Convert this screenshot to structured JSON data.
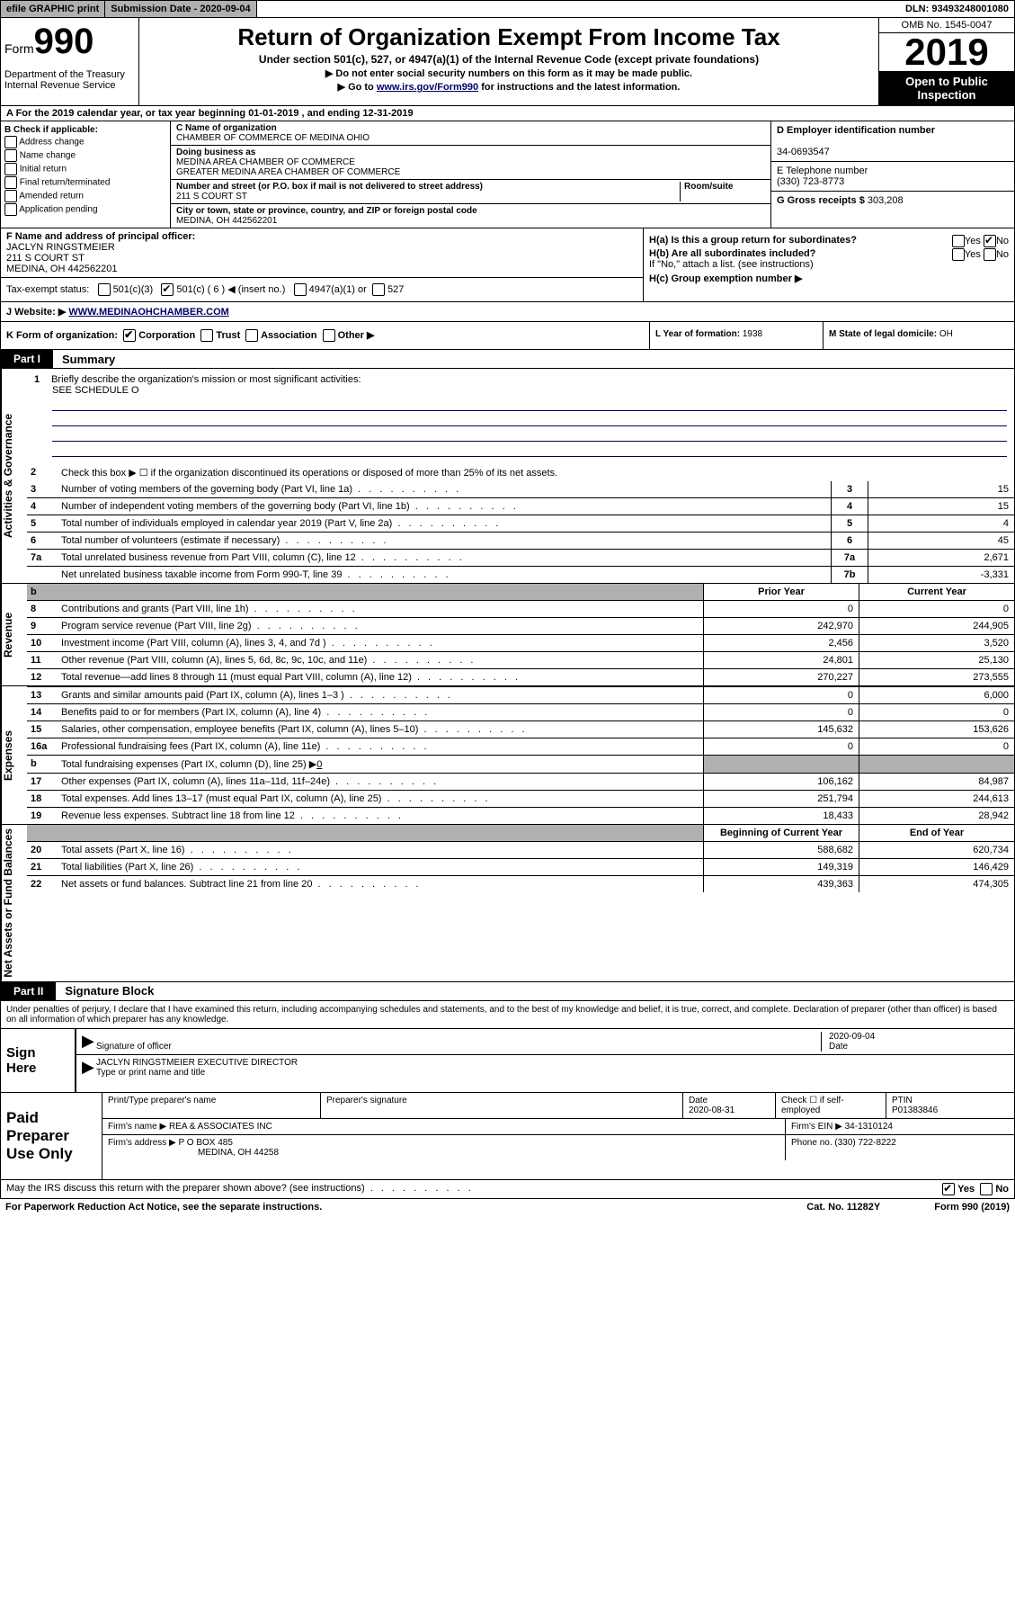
{
  "top_bar": {
    "efile": "efile GRAPHIC print",
    "sub_date_label": "Submission Date - ",
    "sub_date": "2020-09-04",
    "dln_label": "DLN: ",
    "dln": "93493248001080"
  },
  "header": {
    "form_label": "Form",
    "form_num": "990",
    "dept": "Department of the Treasury\nInternal Revenue Service",
    "title": "Return of Organization Exempt From Income Tax",
    "subtitle": "Under section 501(c), 527, or 4947(a)(1) of the Internal Revenue Code (except private foundations)",
    "note1": "▶ Do not enter social security numbers on this form as it may be made public.",
    "note2_pre": "▶ Go to ",
    "note2_link": "www.irs.gov/Form990",
    "note2_post": " for instructions and the latest information.",
    "omb": "OMB No. 1545-0047",
    "year": "2019",
    "open": "Open to Public Inspection"
  },
  "row_a": "A For the 2019 calendar year, or tax year beginning 01-01-2019   , and ending 12-31-2019",
  "col_b": {
    "hdr": "B Check if applicable:",
    "opts": [
      "Address change",
      "Name change",
      "Initial return",
      "Final return/terminated",
      "Amended return",
      "Application pending"
    ]
  },
  "col_c": {
    "name_lbl": "C Name of organization",
    "name": "CHAMBER OF COMMERCE OF MEDINA OHIO",
    "dba_lbl": "Doing business as",
    "dba1": "MEDINA AREA CHAMBER OF COMMERCE",
    "dba2": "GREATER MEDINA AREA CHAMBER OF COMMERCE",
    "addr_lbl": "Number and street (or P.O. box if mail is not delivered to street address)",
    "room_lbl": "Room/suite",
    "addr": "211 S COURT ST",
    "city_lbl": "City or town, state or province, country, and ZIP or foreign postal code",
    "city": "MEDINA, OH  442562201"
  },
  "col_d": {
    "ein_lbl": "D Employer identification number",
    "ein": "34-0693547",
    "phone_lbl": "E Telephone number",
    "phone": "(330) 723-8773",
    "gross_lbl": "G Gross receipts $ ",
    "gross": "303,208"
  },
  "f": {
    "lbl": "F  Name and address of principal officer:",
    "name": "JACLYN RINGSTMEIER",
    "addr1": "211 S COURT ST",
    "addr2": "MEDINA, OH  442562201"
  },
  "tax_status": {
    "lbl": "Tax-exempt status:",
    "o1": "501(c)(3)",
    "o2": "501(c) ( 6 ) ◀ (insert no.)",
    "o3": "4947(a)(1) or",
    "o4": "527"
  },
  "h": {
    "ha": "H(a)  Is this a group return for subordinates?",
    "hb": "H(b)  Are all subordinates included?",
    "hb_note": "If \"No,\" attach a list. (see instructions)",
    "hc": "H(c)  Group exemption number ▶",
    "yes": "Yes",
    "no": "No"
  },
  "j": {
    "lbl": "J   Website: ▶  ",
    "url": "WWW.MEDINAOHCHAMBER.COM"
  },
  "k": {
    "lbl": "K Form of organization:",
    "o1": "Corporation",
    "o2": "Trust",
    "o3": "Association",
    "o4": "Other ▶"
  },
  "l": {
    "lbl": "L Year of formation: ",
    "val": "1938"
  },
  "m": {
    "lbl": "M State of legal domicile: ",
    "val": "OH"
  },
  "part1": {
    "tab": "Part I",
    "title": "Summary"
  },
  "mission": {
    "num": "1",
    "lbl": "Briefly describe the organization's mission or most significant activities:",
    "text": "SEE SCHEDULE O"
  },
  "line2": "Check this box ▶ ☐  if the organization discontinued its operations or disposed of more than 25% of its net assets.",
  "sides": {
    "gov": "Activities & Governance",
    "rev": "Revenue",
    "exp": "Expenses",
    "net": "Net Assets or Fund Balances"
  },
  "lines_single": [
    {
      "n": "3",
      "d": "Number of voting members of the governing body (Part VI, line 1a)",
      "c": "3",
      "v": "15"
    },
    {
      "n": "4",
      "d": "Number of independent voting members of the governing body (Part VI, line 1b)",
      "c": "4",
      "v": "15"
    },
    {
      "n": "5",
      "d": "Total number of individuals employed in calendar year 2019 (Part V, line 2a)",
      "c": "5",
      "v": "4"
    },
    {
      "n": "6",
      "d": "Total number of volunteers (estimate if necessary)",
      "c": "6",
      "v": "45"
    },
    {
      "n": "7a",
      "d": "Total unrelated business revenue from Part VIII, column (C), line 12",
      "c": "7a",
      "v": "2,671"
    },
    {
      "n": "",
      "d": "Net unrelated business taxable income from Form 990-T, line 39",
      "c": "7b",
      "v": "-3,331"
    }
  ],
  "py_cy_hdr": {
    "b": "b",
    "py": "Prior Year",
    "cy": "Current Year"
  },
  "revenue_lines": [
    {
      "n": "8",
      "d": "Contributions and grants (Part VIII, line 1h)",
      "py": "0",
      "cy": "0"
    },
    {
      "n": "9",
      "d": "Program service revenue (Part VIII, line 2g)",
      "py": "242,970",
      "cy": "244,905"
    },
    {
      "n": "10",
      "d": "Investment income (Part VIII, column (A), lines 3, 4, and 7d )",
      "py": "2,456",
      "cy": "3,520"
    },
    {
      "n": "11",
      "d": "Other revenue (Part VIII, column (A), lines 5, 6d, 8c, 9c, 10c, and 11e)",
      "py": "24,801",
      "cy": "25,130"
    },
    {
      "n": "12",
      "d": "Total revenue—add lines 8 through 11 (must equal Part VIII, column (A), line 12)",
      "py": "270,227",
      "cy": "273,555"
    }
  ],
  "expense_lines": [
    {
      "n": "13",
      "d": "Grants and similar amounts paid (Part IX, column (A), lines 1–3 )",
      "py": "0",
      "cy": "6,000"
    },
    {
      "n": "14",
      "d": "Benefits paid to or for members (Part IX, column (A), line 4)",
      "py": "0",
      "cy": "0"
    },
    {
      "n": "15",
      "d": "Salaries, other compensation, employee benefits (Part IX, column (A), lines 5–10)",
      "py": "145,632",
      "cy": "153,626"
    },
    {
      "n": "16a",
      "d": "Professional fundraising fees (Part IX, column (A), line 11e)",
      "py": "0",
      "cy": "0"
    }
  ],
  "line16b": {
    "n": "b",
    "d": "Total fundraising expenses (Part IX, column (D), line 25) ▶",
    "v": "0"
  },
  "expense_lines2": [
    {
      "n": "17",
      "d": "Other expenses (Part IX, column (A), lines 11a–11d, 11f–24e)",
      "py": "106,162",
      "cy": "84,987"
    },
    {
      "n": "18",
      "d": "Total expenses. Add lines 13–17 (must equal Part IX, column (A), line 25)",
      "py": "251,794",
      "cy": "244,613"
    },
    {
      "n": "19",
      "d": "Revenue less expenses. Subtract line 18 from line 12",
      "py": "18,433",
      "cy": "28,942"
    }
  ],
  "net_hdr": {
    "py": "Beginning of Current Year",
    "cy": "End of Year"
  },
  "net_lines": [
    {
      "n": "20",
      "d": "Total assets (Part X, line 16)",
      "py": "588,682",
      "cy": "620,734"
    },
    {
      "n": "21",
      "d": "Total liabilities (Part X, line 26)",
      "py": "149,319",
      "cy": "146,429"
    },
    {
      "n": "22",
      "d": "Net assets or fund balances. Subtract line 21 from line 20",
      "py": "439,363",
      "cy": "474,305"
    }
  ],
  "part2": {
    "tab": "Part II",
    "title": "Signature Block"
  },
  "perjury": "Under penalties of perjury, I declare that I have examined this return, including accompanying schedules and statements, and to the best of my knowledge and belief, it is true, correct, and complete. Declaration of preparer (other than officer) is based on all information of which preparer has any knowledge.",
  "sign": {
    "here": "Sign Here",
    "sig_lbl": "Signature of officer",
    "date_lbl": "Date",
    "date": "2020-09-04",
    "name": "JACLYN RINGSTMEIER  EXECUTIVE DIRECTOR",
    "name_lbl": "Type or print name and title"
  },
  "paid": {
    "lbl": "Paid Preparer Use Only",
    "h1": "Print/Type preparer's name",
    "h2": "Preparer's signature",
    "h3": "Date",
    "h4": "Check ☐ if self-employed",
    "h5": "PTIN",
    "date": "2020-08-31",
    "ptin": "P01383846",
    "firm_name_lbl": "Firm's name    ▶",
    "firm_name": "REA & ASSOCIATES INC",
    "firm_ein_lbl": "Firm's EIN ▶",
    "firm_ein": "34-1310124",
    "firm_addr_lbl": "Firm's address ▶",
    "firm_addr1": "P O BOX 485",
    "firm_addr2": "MEDINA, OH  44258",
    "phone_lbl": "Phone no. ",
    "phone": "(330) 722-8222"
  },
  "discuss": {
    "q": "May the IRS discuss this return with the preparer shown above? (see instructions)",
    "yes": "Yes",
    "no": "No"
  },
  "footer": {
    "left": "For Paperwork Reduction Act Notice, see the separate instructions.",
    "mid": "Cat. No. 11282Y",
    "right": "Form 990 (2019)"
  },
  "colors": {
    "link": "#000066",
    "shade": "#b0b0b0"
  }
}
